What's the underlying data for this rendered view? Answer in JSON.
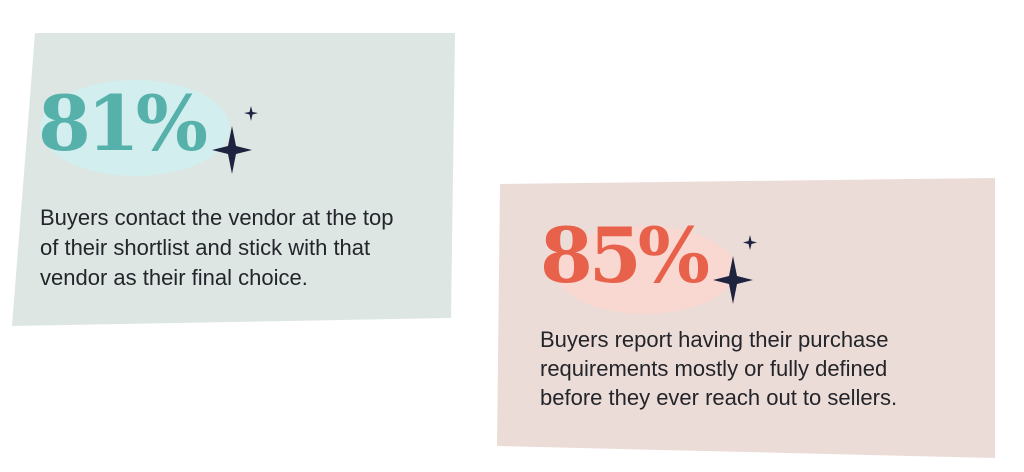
{
  "cards": [
    {
      "stat": "81%",
      "lines": [
        "Buyers contact the vendor at the top",
        "of their shortlist and stick with that",
        "vendor as their final choice."
      ]
    },
    {
      "stat": "85%",
      "lines": [
        "Buyers report having their purchase",
        "requirements mostly or fully defined",
        "before they ever reach out to sellers."
      ]
    }
  ]
}
